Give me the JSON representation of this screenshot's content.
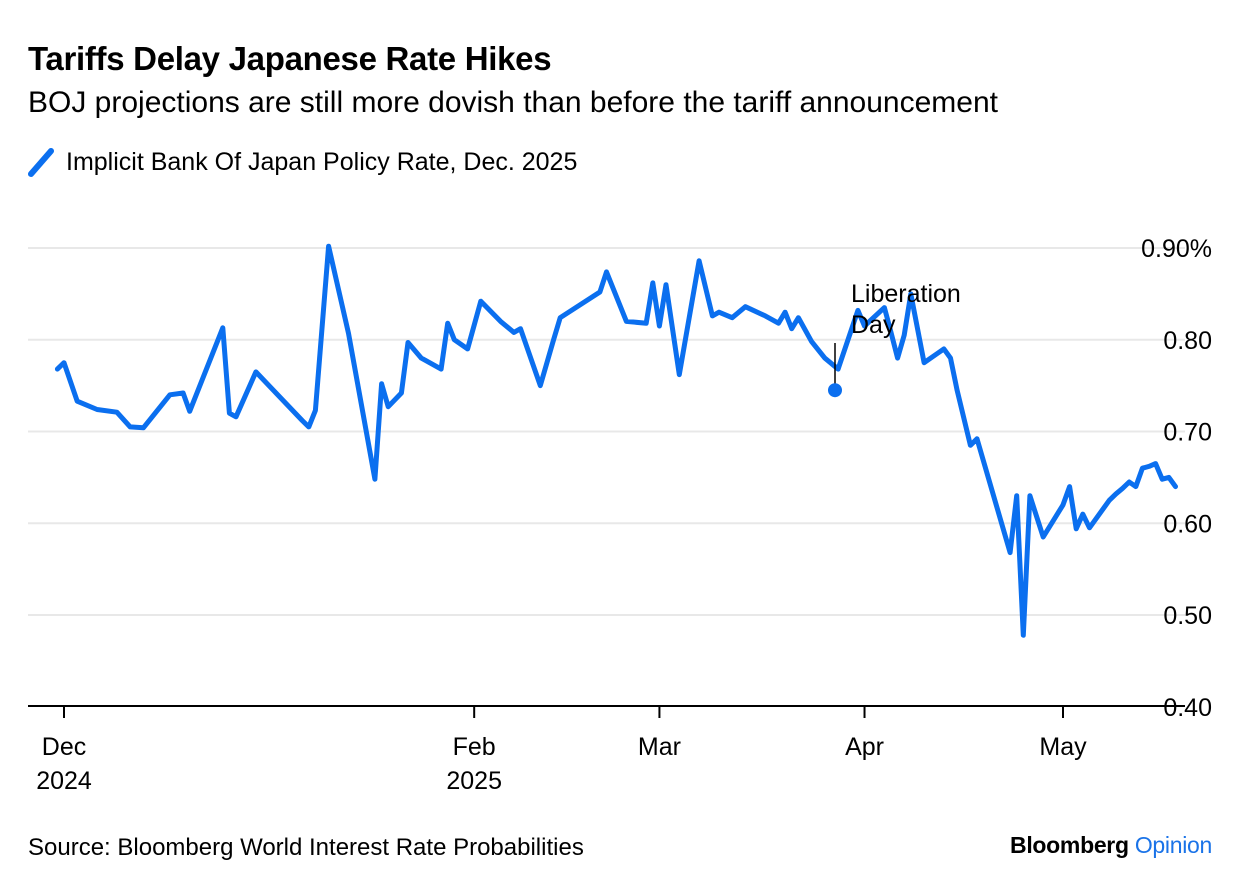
{
  "title": "Tariffs Delay Japanese Rate Hikes",
  "subtitle": "BOJ projections are still more dovish than before the tariff announcement",
  "legend_label": "Implicit Bank Of Japan Policy Rate, Dec. 2025",
  "source": "Source: Bloomberg World Interest Rate Probabilities",
  "brand": {
    "name": "Bloomberg",
    "accent": "Opinion"
  },
  "colors": {
    "series": "#0b6fef",
    "grid": "#e8e8e8",
    "axis": "#000000",
    "brand_accent": "#1a73e8"
  },
  "chart_data": {
    "type": "line",
    "title": "Tariffs Delay Japanese Rate Hikes",
    "subtitle": "BOJ projections are still more dovish than before the tariff announcement",
    "ylim": [
      0.4,
      0.9
    ],
    "y_ticks": [
      {
        "value": 0.9,
        "label": "0.90%"
      },
      {
        "value": 0.8,
        "label": "0.80"
      },
      {
        "value": 0.7,
        "label": "0.70"
      },
      {
        "value": 0.6,
        "label": "0.60"
      },
      {
        "value": 0.5,
        "label": "0.50"
      },
      {
        "value": 0.4,
        "label": "0.40"
      }
    ],
    "x_ticks": [
      {
        "date": "2024-12-01",
        "line1": "Dec",
        "line2": "2024"
      },
      {
        "date": "2025-02-01",
        "line1": "Feb",
        "line2": "2025"
      },
      {
        "date": "2025-03-01",
        "line1": "Mar",
        "line2": ""
      },
      {
        "date": "2025-04-01",
        "line1": "Apr",
        "line2": ""
      },
      {
        "date": "2025-05-01",
        "line1": "May",
        "line2": ""
      }
    ],
    "xlim": [
      "2024-11-22",
      "2025-05-16"
    ],
    "grid": true,
    "legend": "top-left",
    "annotation": {
      "date": "2025-04-02",
      "value": 0.745,
      "line1": "Liberation",
      "line2": "Day"
    },
    "series": [
      {
        "name": "Implicit Bank Of Japan Policy Rate, Dec. 2025",
        "points": [
          [
            "2024-11-30",
            0.768
          ],
          [
            "2024-12-01",
            0.775
          ],
          [
            "2024-12-03",
            0.733
          ],
          [
            "2024-12-06",
            0.724
          ],
          [
            "2024-12-09",
            0.721
          ],
          [
            "2024-12-11",
            0.705
          ],
          [
            "2024-12-13",
            0.704
          ],
          [
            "2024-12-17",
            0.74
          ],
          [
            "2024-12-19",
            0.742
          ],
          [
            "2024-12-20",
            0.722
          ],
          [
            "2024-12-25",
            0.813
          ],
          [
            "2024-12-26",
            0.72
          ],
          [
            "2024-12-27",
            0.716
          ],
          [
            "2024-12-30",
            0.765
          ],
          [
            "2025-01-06",
            0.712
          ],
          [
            "2025-01-07",
            0.705
          ],
          [
            "2025-01-08",
            0.723
          ],
          [
            "2025-01-10",
            0.902
          ],
          [
            "2025-01-13",
            0.807
          ],
          [
            "2025-01-17",
            0.648
          ],
          [
            "2025-01-18",
            0.752
          ],
          [
            "2025-01-19",
            0.727
          ],
          [
            "2025-01-21",
            0.742
          ],
          [
            "2025-01-22",
            0.797
          ],
          [
            "2025-01-24",
            0.78
          ],
          [
            "2025-01-27",
            0.768
          ],
          [
            "2025-01-28",
            0.818
          ],
          [
            "2025-01-29",
            0.8
          ],
          [
            "2025-01-31",
            0.79
          ],
          [
            "2025-02-02",
            0.842
          ],
          [
            "2025-02-05",
            0.82
          ],
          [
            "2025-02-07",
            0.808
          ],
          [
            "2025-02-08",
            0.812
          ],
          [
            "2025-02-11",
            0.75
          ],
          [
            "2025-02-13",
            0.8
          ],
          [
            "2025-02-14",
            0.824
          ],
          [
            "2025-02-20",
            0.852
          ],
          [
            "2025-02-21",
            0.874
          ],
          [
            "2025-02-24",
            0.82
          ],
          [
            "2025-02-27",
            0.818
          ],
          [
            "2025-02-28",
            0.862
          ],
          [
            "2025-03-01",
            0.815
          ],
          [
            "2025-03-02",
            0.86
          ],
          [
            "2025-03-04",
            0.762
          ],
          [
            "2025-03-07",
            0.886
          ],
          [
            "2025-03-09",
            0.826
          ],
          [
            "2025-03-10",
            0.83
          ],
          [
            "2025-03-12",
            0.824
          ],
          [
            "2025-03-14",
            0.836
          ],
          [
            "2025-03-17",
            0.826
          ],
          [
            "2025-03-19",
            0.818
          ],
          [
            "2025-03-20",
            0.83
          ],
          [
            "2025-03-21",
            0.812
          ],
          [
            "2025-03-22",
            0.824
          ],
          [
            "2025-03-24",
            0.798
          ],
          [
            "2025-03-26",
            0.78
          ],
          [
            "2025-03-28",
            0.768
          ],
          [
            "2025-03-31",
            0.832
          ],
          [
            "2025-04-01",
            0.815
          ],
          [
            "2025-04-04",
            0.835
          ],
          [
            "2025-04-05",
            0.808
          ],
          [
            "2025-04-06",
            0.78
          ],
          [
            "2025-04-07",
            0.805
          ],
          [
            "2025-04-08",
            0.85
          ],
          [
            "2025-04-10",
            0.775
          ],
          [
            "2025-04-12",
            0.785
          ],
          [
            "2025-04-13",
            0.79
          ],
          [
            "2025-04-14",
            0.78
          ],
          [
            "2025-04-15",
            0.745
          ],
          [
            "2025-04-17",
            0.685
          ],
          [
            "2025-04-18",
            0.692
          ],
          [
            "2025-04-23",
            0.568
          ],
          [
            "2025-04-24",
            0.63
          ],
          [
            "2025-04-25",
            0.478
          ],
          [
            "2025-04-26",
            0.63
          ],
          [
            "2025-04-28",
            0.585
          ],
          [
            "2025-05-01",
            0.62
          ],
          [
            "2025-05-02",
            0.64
          ],
          [
            "2025-05-03",
            0.594
          ],
          [
            "2025-05-04",
            0.61
          ],
          [
            "2025-05-05",
            0.595
          ],
          [
            "2025-05-08",
            0.625
          ],
          [
            "2025-05-09",
            0.632
          ],
          [
            "2025-05-10",
            0.638
          ],
          [
            "2025-05-11",
            0.645
          ],
          [
            "2025-05-12",
            0.64
          ],
          [
            "2025-05-13",
            0.66
          ],
          [
            "2025-05-14",
            0.662
          ],
          [
            "2025-05-15",
            0.665
          ],
          [
            "2025-05-16",
            0.648
          ],
          [
            "2025-05-17",
            0.65
          ],
          [
            "2025-05-18",
            0.64
          ]
        ]
      }
    ]
  }
}
